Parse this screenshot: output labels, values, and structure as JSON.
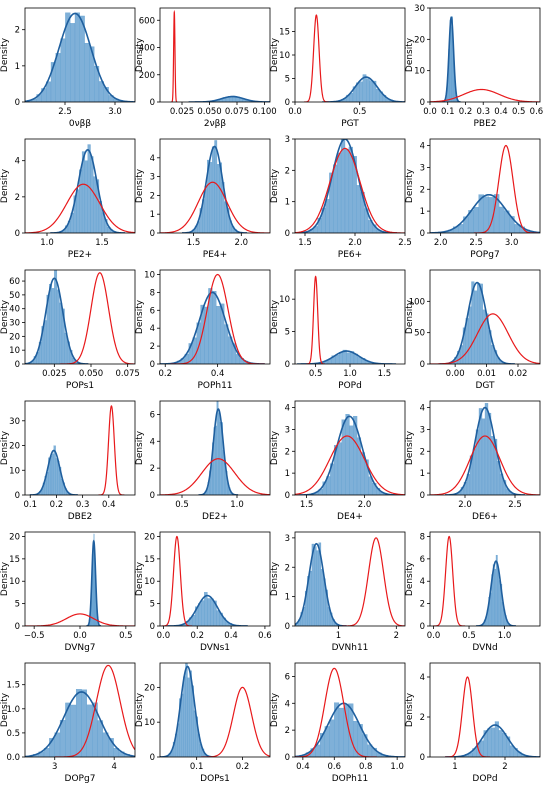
{
  "figure": {
    "ylabel_all": "Density",
    "hist_color": "#1f77b4",
    "hist_fill": "#7fb0d8",
    "kde_color": "#1f5f9e",
    "prior_color": "#e8191b"
  },
  "chart_data": [
    {
      "type": "area",
      "xlabel": "0νββ",
      "xlim": [
        2.1,
        3.2
      ],
      "ylim": [
        0,
        2.6
      ],
      "xticks": [
        2.5,
        3.0
      ],
      "xtick_labels": [
        "2.5",
        "3.0"
      ],
      "yticks": [
        0,
        1,
        2
      ],
      "ytick_labels": [
        "0",
        "1",
        "2"
      ],
      "post": {
        "mu": 2.6,
        "sd": 0.16,
        "peak": 2.45
      },
      "prior": null
    },
    {
      "type": "area",
      "xlabel": "2νββ",
      "xlim": [
        0.005,
        0.105
      ],
      "ylim": [
        0,
        690
      ],
      "xticks": [
        0.025,
        0.05,
        0.075,
        0.1
      ],
      "xtick_labels": [
        "0.025",
        "0.050",
        "0.075",
        "0.100"
      ],
      "yticks": [
        0,
        200,
        400,
        600
      ],
      "ytick_labels": [
        "0",
        "200",
        "400",
        "600"
      ],
      "post": {
        "mu": 0.071,
        "sd": 0.01,
        "peak": 40
      },
      "prior": {
        "mu": 0.018,
        "sd": 0.0006,
        "peak": 660
      }
    },
    {
      "type": "area",
      "xlabel": "PGT",
      "xlim": [
        0,
        0.85
      ],
      "ylim": [
        0,
        20
      ],
      "xticks": [
        0,
        0.5
      ],
      "xtick_labels": [
        "0.0",
        "0.5"
      ],
      "yticks": [
        0,
        5,
        10,
        15
      ],
      "ytick_labels": [
        "0",
        "5",
        "10",
        "15"
      ],
      "post": {
        "mu": 0.55,
        "sd": 0.085,
        "peak": 5.3
      },
      "prior": {
        "mu": 0.165,
        "sd": 0.021,
        "peak": 18.5
      }
    },
    {
      "type": "area",
      "xlabel": "PBE2",
      "xlim": [
        0,
        0.62
      ],
      "ylim": [
        0,
        30
      ],
      "xticks": [
        0,
        0.1,
        0.2,
        0.3,
        0.4,
        0.5,
        0.6
      ],
      "xtick_labels": [
        "0.0",
        "0.1",
        "0.2",
        "0.3",
        "0.4",
        "0.5",
        "0.6"
      ],
      "yticks": [
        0,
        10,
        20,
        30
      ],
      "ytick_labels": [
        "0",
        "10",
        "20",
        "30"
      ],
      "post": {
        "mu": 0.12,
        "sd": 0.013,
        "peak": 27
      },
      "prior": {
        "mu": 0.29,
        "sd": 0.1,
        "peak": 4
      }
    },
    {
      "type": "area",
      "xlabel": "PE2+",
      "xlim": [
        0.8,
        1.8
      ],
      "ylim": [
        0,
        5.2
      ],
      "xticks": [
        1.0,
        1.5
      ],
      "xtick_labels": [
        "1.0",
        "1.5"
      ],
      "yticks": [
        0,
        2,
        4
      ],
      "ytick_labels": [
        "0",
        "2",
        "4"
      ],
      "post": {
        "mu": 1.37,
        "sd": 0.085,
        "peak": 4.6
      },
      "prior": {
        "mu": 1.33,
        "sd": 0.15,
        "peak": 2.7
      }
    },
    {
      "type": "area",
      "xlabel": "PE4+",
      "xlim": [
        1.15,
        2.3
      ],
      "ylim": [
        0,
        5.0
      ],
      "xticks": [
        1.5,
        2.0
      ],
      "xtick_labels": [
        "1.5",
        "2.0"
      ],
      "yticks": [
        0,
        1,
        2,
        3,
        4
      ],
      "ytick_labels": [
        "0",
        "1",
        "2",
        "3",
        "4"
      ],
      "post": {
        "mu": 1.72,
        "sd": 0.085,
        "peak": 4.6
      },
      "prior": {
        "mu": 1.7,
        "sd": 0.15,
        "peak": 2.7
      }
    },
    {
      "type": "area",
      "xlabel": "PE6+",
      "xlim": [
        1.4,
        2.5
      ],
      "ylim": [
        0,
        3.0
      ],
      "xticks": [
        1.5,
        2.0,
        2.5
      ],
      "xtick_labels": [
        "1.5",
        "2.0",
        "2.5"
      ],
      "yticks": [
        0,
        1,
        2,
        3
      ],
      "ytick_labels": [
        "0",
        "1",
        "2",
        "3"
      ],
      "post": {
        "mu": 1.9,
        "sd": 0.13,
        "peak": 3.0
      },
      "prior": {
        "mu": 1.9,
        "sd": 0.15,
        "peak": 2.7
      }
    },
    {
      "type": "area",
      "xlabel": "POPg7",
      "xlim": [
        1.85,
        3.4
      ],
      "ylim": [
        0,
        4.3
      ],
      "xticks": [
        2.0,
        2.5,
        3.0
      ],
      "xtick_labels": [
        "2.0",
        "2.5",
        "3.0"
      ],
      "yticks": [
        0,
        1,
        2,
        3,
        4
      ],
      "ytick_labels": [
        "0",
        "1",
        "2",
        "3",
        "4"
      ],
      "post": {
        "mu": 2.68,
        "sd": 0.24,
        "peak": 1.75
      },
      "prior": {
        "mu": 2.92,
        "sd": 0.1,
        "peak": 4.0
      }
    },
    {
      "type": "area",
      "xlabel": "POPs1",
      "xlim": [
        0.005,
        0.08
      ],
      "ylim": [
        0,
        68
      ],
      "xticks": [
        0.025,
        0.05,
        0.075
      ],
      "xtick_labels": [
        "0.025",
        "0.050",
        "0.075"
      ],
      "yticks": [
        0,
        10,
        20,
        30,
        40,
        50,
        60
      ],
      "ytick_labels": [
        "0",
        "10",
        "20",
        "30",
        "40",
        "50",
        "60"
      ],
      "post": {
        "mu": 0.025,
        "sd": 0.0058,
        "peak": 62
      },
      "prior": {
        "mu": 0.056,
        "sd": 0.006,
        "peak": 66
      }
    },
    {
      "type": "area",
      "xlabel": "POPh11",
      "xlim": [
        0.18,
        0.6
      ],
      "ylim": [
        0,
        10.5
      ],
      "xticks": [
        0.2,
        0.4
      ],
      "xtick_labels": [
        "0.2",
        "0.4"
      ],
      "yticks": [
        0,
        2,
        4,
        6,
        8,
        10
      ],
      "ytick_labels": [
        "0",
        "2",
        "4",
        "6",
        "8",
        "10"
      ],
      "post": {
        "mu": 0.38,
        "sd": 0.05,
        "peak": 8.0
      },
      "prior": {
        "mu": 0.4,
        "sd": 0.04,
        "peak": 10.0
      }
    },
    {
      "type": "area",
      "xlabel": "POPd",
      "xlim": [
        0.2,
        1.8
      ],
      "ylim": [
        0,
        14.5
      ],
      "xticks": [
        0.5,
        1.0,
        1.5
      ],
      "xtick_labels": [
        "0.5",
        "1.0",
        "1.5"
      ],
      "yticks": [
        0,
        5,
        10
      ],
      "ytick_labels": [
        "0",
        "5",
        "10"
      ],
      "post": {
        "mu": 0.95,
        "sd": 0.18,
        "peak": 2.0
      },
      "prior": {
        "mu": 0.5,
        "sd": 0.03,
        "peak": 13.5
      }
    },
    {
      "type": "area",
      "xlabel": "DGT",
      "xlim": [
        -0.008,
        0.027
      ],
      "ylim": [
        0,
        150
      ],
      "xticks": [
        0,
        0.01,
        0.02
      ],
      "xtick_labels": [
        "0.00",
        "0.01",
        "0.02"
      ],
      "yticks": [
        0,
        50,
        100
      ],
      "ytick_labels": [
        "0",
        "50",
        "100"
      ],
      "post": {
        "mu": 0.007,
        "sd": 0.003,
        "peak": 130
      },
      "prior": {
        "mu": 0.012,
        "sd": 0.0049,
        "peak": 80
      }
    },
    {
      "type": "area",
      "xlabel": "DBE2",
      "xlim": [
        0.08,
        0.5
      ],
      "ylim": [
        0,
        38
      ],
      "xticks": [
        0.1,
        0.2,
        0.3,
        0.4
      ],
      "xtick_labels": [
        "0.1",
        "0.2",
        "0.3",
        "0.4"
      ],
      "yticks": [
        0,
        10,
        20,
        30
      ],
      "ytick_labels": [
        "0",
        "10",
        "20",
        "30"
      ],
      "post": {
        "mu": 0.19,
        "sd": 0.023,
        "peak": 18
      },
      "prior": {
        "mu": 0.41,
        "sd": 0.011,
        "peak": 36
      }
    },
    {
      "type": "area",
      "xlabel": "DE2+",
      "xlim": [
        0.3,
        1.3
      ],
      "ylim": [
        0,
        7.0
      ],
      "xticks": [
        0.5,
        1.0
      ],
      "xtick_labels": [
        "0.5",
        "1.0"
      ],
      "yticks": [
        0,
        2,
        4,
        6
      ],
      "ytick_labels": [
        "0",
        "2",
        "4",
        "6"
      ],
      "post": {
        "mu": 0.83,
        "sd": 0.045,
        "peak": 6.4
      },
      "prior": {
        "mu": 0.83,
        "sd": 0.15,
        "peak": 2.7
      }
    },
    {
      "type": "area",
      "xlabel": "DE4+",
      "xlim": [
        1.4,
        2.35
      ],
      "ylim": [
        0,
        4.3
      ],
      "xticks": [
        1.5,
        2.0
      ],
      "xtick_labels": [
        "1.5",
        "2.0"
      ],
      "yticks": [
        0,
        1,
        2,
        3,
        4
      ],
      "ytick_labels": [
        "0",
        "1",
        "2",
        "3",
        "4"
      ],
      "post": {
        "mu": 1.87,
        "sd": 0.11,
        "peak": 3.6
      },
      "prior": {
        "mu": 1.85,
        "sd": 0.15,
        "peak": 2.7
      }
    },
    {
      "type": "area",
      "xlabel": "DE6+",
      "xlim": [
        1.65,
        2.75
      ],
      "ylim": [
        0,
        4.3
      ],
      "xticks": [
        2.0,
        2.5
      ],
      "xtick_labels": [
        "2.0",
        "2.5"
      ],
      "yticks": [
        0,
        1,
        2,
        3,
        4
      ],
      "ytick_labels": [
        "0",
        "1",
        "2",
        "3",
        "4"
      ],
      "post": {
        "mu": 2.2,
        "sd": 0.1,
        "peak": 4.0
      },
      "prior": {
        "mu": 2.2,
        "sd": 0.15,
        "peak": 2.7
      }
    },
    {
      "type": "area",
      "xlabel": "DVNg7",
      "xlim": [
        -0.6,
        0.6
      ],
      "ylim": [
        0,
        21
      ],
      "xticks": [
        -0.5,
        0,
        0.5
      ],
      "xtick_labels": [
        "−0.5",
        "0.0",
        "0.5"
      ],
      "yticks": [
        0,
        5,
        10,
        15,
        20
      ],
      "ytick_labels": [
        "0",
        "5",
        "10",
        "15",
        "20"
      ],
      "post": {
        "mu": 0.15,
        "sd": 0.02,
        "peak": 19
      },
      "prior": {
        "mu": 0.0,
        "sd": 0.15,
        "peak": 2.7
      }
    },
    {
      "type": "area",
      "xlabel": "DVNs1",
      "xlim": [
        -0.02,
        0.63
      ],
      "ylim": [
        0,
        21
      ],
      "xticks": [
        0,
        0.2,
        0.4,
        0.6
      ],
      "xtick_labels": [
        "0.0",
        "0.2",
        "0.4",
        "0.6"
      ],
      "yticks": [
        0,
        5,
        10,
        15,
        20
      ],
      "ytick_labels": [
        "0",
        "5",
        "10",
        "15",
        "20"
      ],
      "post": {
        "mu": 0.26,
        "sd": 0.06,
        "peak": 6.8
      },
      "prior": {
        "mu": 0.08,
        "sd": 0.02,
        "peak": 20
      }
    },
    {
      "type": "area",
      "xlabel": "DVNh11",
      "xlim": [
        0.25,
        2.15
      ],
      "ylim": [
        0,
        3.2
      ],
      "xticks": [
        1,
        2
      ],
      "xtick_labels": [
        "1",
        "2"
      ],
      "yticks": [
        0,
        1,
        2,
        3
      ],
      "ytick_labels": [
        "0",
        "1",
        "2",
        "3"
      ],
      "post": {
        "mu": 0.62,
        "sd": 0.13,
        "peak": 2.8
      },
      "prior": {
        "mu": 1.65,
        "sd": 0.13,
        "peak": 3.0
      }
    },
    {
      "type": "area",
      "xlabel": "DVNd",
      "xlim": [
        -0.05,
        1.5
      ],
      "ylim": [
        0,
        8.4
      ],
      "xticks": [
        0,
        0.5,
        1.0
      ],
      "xtick_labels": [
        "0.0",
        "0.5",
        "1.0"
      ],
      "yticks": [
        0,
        2,
        4,
        6,
        8
      ],
      "ytick_labels": [
        "0",
        "2",
        "4",
        "6",
        "8"
      ],
      "post": {
        "mu": 0.88,
        "sd": 0.07,
        "peak": 5.8
      },
      "prior": {
        "mu": 0.22,
        "sd": 0.05,
        "peak": 8.0
      }
    },
    {
      "type": "area",
      "xlabel": "DOPg7",
      "xlim": [
        2.5,
        4.35
      ],
      "ylim": [
        0,
        1.95
      ],
      "xticks": [
        3,
        4
      ],
      "xtick_labels": [
        "3",
        "4"
      ],
      "yticks": [
        0,
        0.5,
        1.0,
        1.5
      ],
      "ytick_labels": [
        "0.0",
        "0.5",
        "1.0",
        "1.5"
      ],
      "post": {
        "mu": 3.45,
        "sd": 0.3,
        "peak": 1.35
      },
      "prior": {
        "mu": 3.9,
        "sd": 0.2,
        "peak": 1.9
      }
    },
    {
      "type": "area",
      "xlabel": "DOPs1",
      "xlim": [
        0.02,
        0.26
      ],
      "ylim": [
        0,
        27
      ],
      "xticks": [
        0.1,
        0.2
      ],
      "xtick_labels": [
        "0.1",
        "0.2"
      ],
      "yticks": [
        0,
        10,
        20
      ],
      "ytick_labels": [
        "0",
        "10",
        "20"
      ],
      "post": {
        "mu": 0.08,
        "sd": 0.015,
        "peak": 26
      },
      "prior": {
        "mu": 0.2,
        "sd": 0.02,
        "peak": 20
      }
    },
    {
      "type": "area",
      "xlabel": "DOPh11",
      "xlim": [
        0.35,
        1.05
      ],
      "ylim": [
        0,
        7.0
      ],
      "xticks": [
        0.4,
        0.6,
        0.8,
        1.0
      ],
      "xtick_labels": [
        "0.4",
        "0.6",
        "0.8",
        "1.0"
      ],
      "yticks": [
        0,
        2,
        4,
        6
      ],
      "ytick_labels": [
        "0",
        "2",
        "4",
        "6"
      ],
      "post": {
        "mu": 0.66,
        "sd": 0.1,
        "peak": 4.0
      },
      "prior": {
        "mu": 0.6,
        "sd": 0.06,
        "peak": 6.6
      }
    },
    {
      "type": "area",
      "xlabel": "DOPd",
      "xlim": [
        0.5,
        2.7
      ],
      "ylim": [
        0,
        4.7
      ],
      "xticks": [
        1,
        2
      ],
      "xtick_labels": [
        "1",
        "2"
      ],
      "yticks": [
        0,
        2,
        4
      ],
      "ytick_labels": [
        "0",
        "2",
        "4"
      ],
      "post": {
        "mu": 1.8,
        "sd": 0.25,
        "peak": 1.6
      },
      "prior": {
        "mu": 1.25,
        "sd": 0.1,
        "peak": 4.0
      }
    }
  ]
}
